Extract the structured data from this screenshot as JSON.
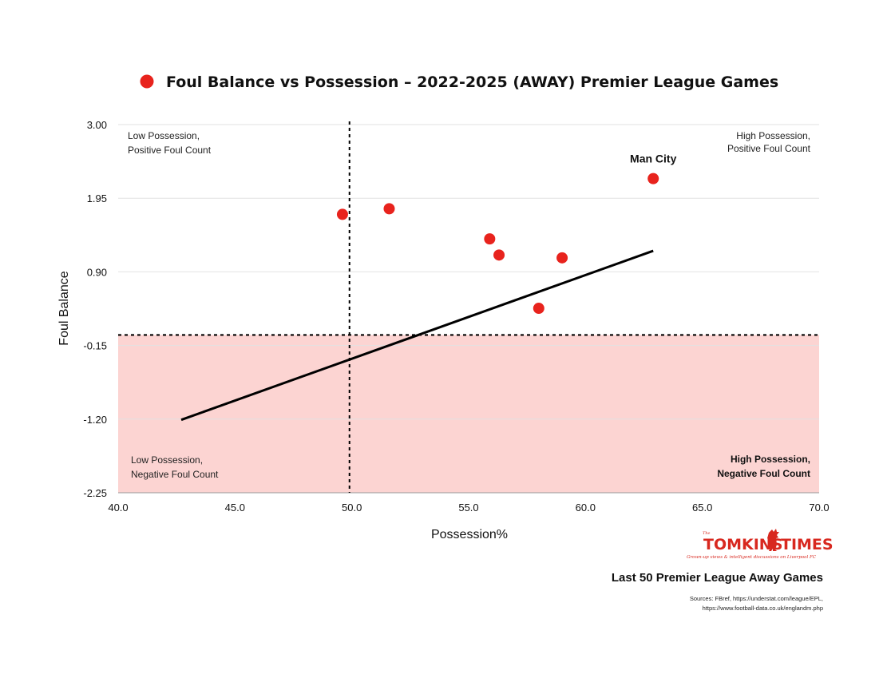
{
  "chart_data": {
    "type": "scatter",
    "title": "Foul Balance vs Possession – 2022-2025 (AWAY) Premier League Games",
    "xlabel": "Possession%",
    "ylabel": "Foul Balance",
    "xlim": [
      40.0,
      70.0
    ],
    "ylim": [
      -2.25,
      3.0
    ],
    "x_ticks": [
      "40.0",
      "45.0",
      "50.0",
      "55.0",
      "60.0",
      "65.0",
      "70.0"
    ],
    "y_ticks": [
      "3.00",
      "1.95",
      "0.90",
      "-0.15",
      "-1.20",
      "-2.25"
    ],
    "grid": "horizontal",
    "legend": "top-center",
    "point_color": "#e8231d",
    "shaded_region_color": "#fcd4d2",
    "series": [
      {
        "name": "Foul Balance vs Possession – 2022-2025 (AWAY) Premier League Games",
        "points": [
          {
            "x": 49.6,
            "y": 1.72
          },
          {
            "x": 51.6,
            "y": 1.8
          },
          {
            "x": 55.9,
            "y": 1.37
          },
          {
            "x": 56.3,
            "y": 1.14
          },
          {
            "x": 58.0,
            "y": 0.38
          },
          {
            "x": 59.0,
            "y": 1.1
          },
          {
            "x": 62.9,
            "y": 2.23,
            "label": "Man City"
          }
        ]
      }
    ],
    "trendline": {
      "from": {
        "x": 42.7,
        "y": -1.21
      },
      "to": {
        "x": 62.9,
        "y": 1.2
      }
    },
    "reference_lines": {
      "vertical_x": 49.9,
      "horizontal_y": 0.0
    },
    "quadrant_labels": {
      "top_left": [
        "Low Possession,",
        "Positive Foul Count"
      ],
      "top_right": [
        "High Possession,",
        "Positive Foul Count"
      ],
      "bottom_left": [
        "Low Possession,",
        "Negative Foul Count"
      ],
      "bottom_right": [
        "High Possession,",
        "Negative Foul Count"
      ]
    }
  },
  "logo": {
    "text": "TOMKINS",
    "text2": "TIMES",
    "small_prefix": "The",
    "tagline": "Grown-up views & intelligent discussions on Liverpool FC",
    "color": "#d8281f"
  },
  "footer": {
    "subtitle": "Last 50 Premier League Away Games",
    "sources_line1": "Sources: FBref, https://understat.com/league/EPL,",
    "sources_line2": "https://www.football-data.co.uk/englandm.php"
  }
}
